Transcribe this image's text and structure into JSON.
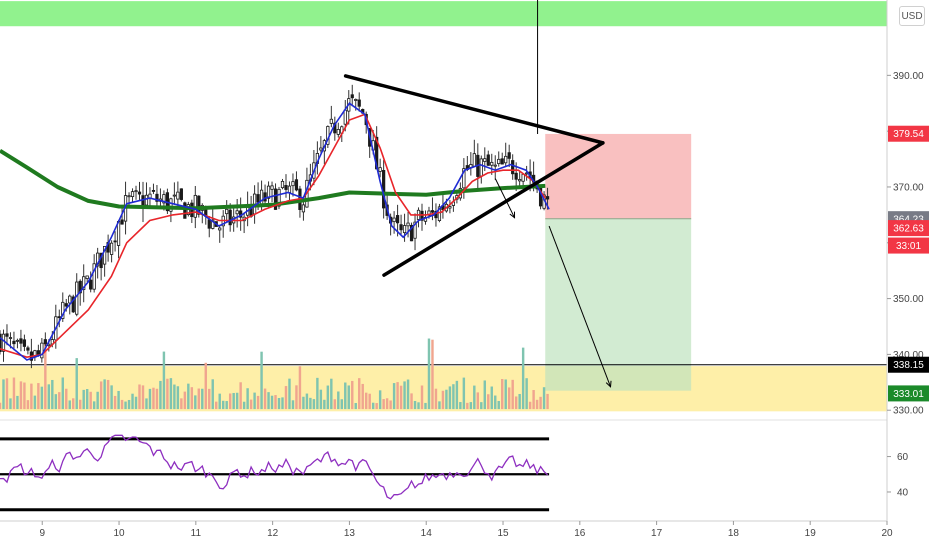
{
  "chart_data": {
    "type": "candlestick",
    "currency_label": "USD",
    "price_axis": {
      "range": [
        329.5,
        403.5
      ],
      "ticks": [
        "390.00",
        "380.00",
        "370.00",
        "360.00",
        "350.00",
        "340.00",
        "330.00"
      ]
    },
    "time_axis": {
      "range": [
        8.45,
        20.0
      ],
      "ticks": [
        "9",
        "10",
        "11",
        "12",
        "13",
        "14",
        "15",
        "16",
        "17",
        "18",
        "19",
        "20"
      ]
    },
    "rsi_axis": {
      "range": [
        27,
        75
      ],
      "ticks": [
        "60",
        "40"
      ],
      "levels": [
        70,
        50,
        30
      ]
    },
    "price_labels": [
      {
        "value": "379.54",
        "price": 379.54,
        "color": "#f23645"
      },
      {
        "value": "364.23",
        "price": 364.23,
        "color": "#787b86"
      },
      {
        "value": "362.63",
        "price": 362.63,
        "color": "#f23645"
      },
      {
        "value": "33:01",
        "price": 359.5,
        "color": "#f23645"
      },
      {
        "value": "338.15",
        "price": 338.15,
        "color": "#000000"
      },
      {
        "value": "333.01",
        "price": 333.01,
        "color": "#1b8a2a"
      }
    ],
    "zones": [
      {
        "name": "resistance",
        "price_top": 403.3,
        "price_bottom": 398.8,
        "color": "#7ef07a"
      },
      {
        "name": "support",
        "price_top": 337.9,
        "price_bottom": 329.8,
        "color": "#fde98b"
      }
    ],
    "horizontal_line": {
      "price": 338.15
    },
    "position": {
      "entry": 364.3,
      "stop": 379.5,
      "target": 333.5,
      "start_day": 15.55,
      "end_day": 17.45
    },
    "triangle": {
      "upper": [
        [
          12.95,
          389.9
        ],
        [
          16.3,
          377.9
        ]
      ],
      "lower": [
        [
          13.45,
          354.2
        ],
        [
          16.3,
          377.9
        ]
      ]
    },
    "ma200": {
      "color": "#1f7a1f",
      "points": [
        [
          8.45,
          376.5
        ],
        [
          8.8,
          373.5
        ],
        [
          9.2,
          370.0
        ],
        [
          9.6,
          367.5
        ],
        [
          10.0,
          366.5
        ],
        [
          11.0,
          366.2
        ],
        [
          12.0,
          366.8
        ],
        [
          12.6,
          368.0
        ],
        [
          13.0,
          369.0
        ],
        [
          13.5,
          368.8
        ],
        [
          14.0,
          368.6
        ],
        [
          14.5,
          369.3
        ],
        [
          15.0,
          369.8
        ],
        [
          15.55,
          370.2
        ]
      ]
    },
    "ema_blue": {
      "color": "#1f2bd4",
      "points": [
        [
          8.45,
          343
        ],
        [
          8.8,
          339
        ],
        [
          9.0,
          340
        ],
        [
          9.3,
          348
        ],
        [
          9.6,
          353
        ],
        [
          9.9,
          361
        ],
        [
          10.1,
          367
        ],
        [
          10.4,
          368
        ],
        [
          10.7,
          367
        ],
        [
          11.0,
          366
        ],
        [
          11.3,
          363
        ],
        [
          11.6,
          365
        ],
        [
          11.9,
          368
        ],
        [
          12.2,
          369
        ],
        [
          12.4,
          368
        ],
        [
          12.6,
          375
        ],
        [
          12.8,
          381
        ],
        [
          13.0,
          385
        ],
        [
          13.2,
          383
        ],
        [
          13.4,
          371
        ],
        [
          13.55,
          363
        ],
        [
          13.7,
          361
        ],
        [
          13.9,
          364
        ],
        [
          14.1,
          365
        ],
        [
          14.3,
          368
        ],
        [
          14.5,
          373
        ],
        [
          14.7,
          374
        ],
        [
          14.9,
          373
        ],
        [
          15.1,
          374
        ],
        [
          15.3,
          373
        ],
        [
          15.45,
          370
        ],
        [
          15.6,
          366
        ]
      ]
    },
    "ema_red": {
      "color": "#e8252a",
      "points": [
        [
          8.45,
          341
        ],
        [
          8.8,
          339.5
        ],
        [
          9.0,
          340
        ],
        [
          9.3,
          344
        ],
        [
          9.6,
          348
        ],
        [
          9.9,
          354
        ],
        [
          10.1,
          360
        ],
        [
          10.4,
          364
        ],
        [
          10.7,
          365
        ],
        [
          11.0,
          365.5
        ],
        [
          11.3,
          364
        ],
        [
          11.6,
          364
        ],
        [
          11.9,
          366
        ],
        [
          12.2,
          367.5
        ],
        [
          12.4,
          368
        ],
        [
          12.6,
          372
        ],
        [
          12.8,
          377
        ],
        [
          13.0,
          382
        ],
        [
          13.2,
          383
        ],
        [
          13.4,
          377
        ],
        [
          13.6,
          369
        ],
        [
          13.8,
          365
        ],
        [
          14.0,
          365
        ],
        [
          14.2,
          365.5
        ],
        [
          14.4,
          368
        ],
        [
          14.6,
          371
        ],
        [
          14.8,
          372.5
        ],
        [
          15.0,
          373
        ],
        [
          15.2,
          373
        ],
        [
          15.4,
          371
        ],
        [
          15.55,
          368
        ]
      ]
    },
    "candle_color": "#1a1a1a",
    "wick_color": "#333333",
    "volume_colors": {
      "up": "#7fc4b0",
      "down": "#f0a58f"
    },
    "rsi_color": "#8e2fc0",
    "line_color": "#000000"
  }
}
